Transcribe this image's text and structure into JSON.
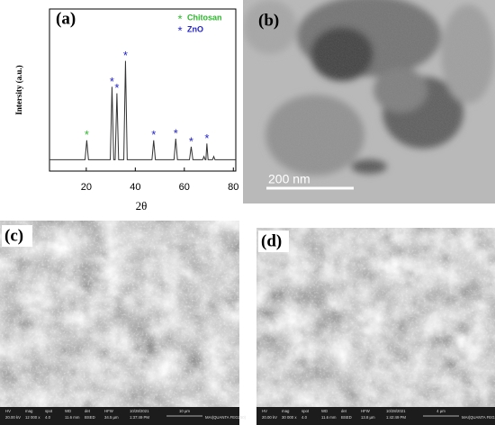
{
  "chart_data": {
    "type": "line",
    "label": "(a)",
    "xlabel": "2θ",
    "ylabel": "Intersity (a.u.)",
    "x": [
      5,
      19.5,
      20.2,
      20.9,
      29.8,
      30.5,
      31.2,
      31.8,
      32.5,
      33.2,
      35.3,
      36,
      36.7,
      46.8,
      47.5,
      48.2,
      55.8,
      56.5,
      57.2,
      62.1,
      62.8,
      63.5,
      67.5,
      68,
      68.5,
      68.8,
      69.2,
      69.7,
      71.5,
      72,
      72.5,
      81
    ],
    "values": [
      7,
      7,
      19,
      7,
      7,
      52,
      7,
      7,
      48,
      7,
      7,
      68,
      7,
      7,
      19,
      7,
      7,
      20,
      7,
      7,
      15,
      7,
      7,
      9,
      7,
      7,
      17,
      7,
      7,
      9,
      7,
      7
    ],
    "color": "#333333",
    "series": [
      {
        "name": "Chitosan",
        "color": "#2db82d",
        "marker": "*",
        "peaks": [
          20.2
        ]
      },
      {
        "name": "ZnO",
        "color": "#2222cc",
        "marker": "*",
        "peaks": [
          30.5,
          32.5,
          36,
          47.5,
          56.5,
          62.8,
          69.2
        ]
      }
    ],
    "xlim": [
      5,
      81
    ],
    "xticks": [
      20,
      40,
      60,
      80
    ],
    "ylim": [
      0,
      100
    ]
  },
  "panels": [
    {
      "label": "(b)",
      "scale_bar": "200 nm"
    },
    {
      "label": "(c)",
      "info": [
        [
          "HV",
          "20.00 kV"
        ],
        [
          "mag",
          "12 000 x"
        ],
        [
          "spot",
          "4.0"
        ],
        [
          "WD",
          "11.6 mm"
        ],
        [
          "det",
          "BSED"
        ],
        [
          "HFW",
          "34.5 µm"
        ],
        [
          "10/28/2021",
          "1:37:49 PM"
        ]
      ],
      "scale_bar": "10 µm",
      "instrument": "MAI(QUANTA FEG250)"
    },
    {
      "label": "(d)",
      "info": [
        [
          "HV",
          "20.00 kV"
        ],
        [
          "mag",
          "30 000 x"
        ],
        [
          "spot",
          "4.0"
        ],
        [
          "WD",
          "11.6 mm"
        ],
        [
          "det",
          "BSED"
        ],
        [
          "HFW",
          "13.8 µm"
        ],
        [
          "10/28/2021",
          "1:42:49 PM"
        ]
      ],
      "scale_bar": "4 µm",
      "instrument": "MAI(QUANTA FEG250)"
    }
  ]
}
